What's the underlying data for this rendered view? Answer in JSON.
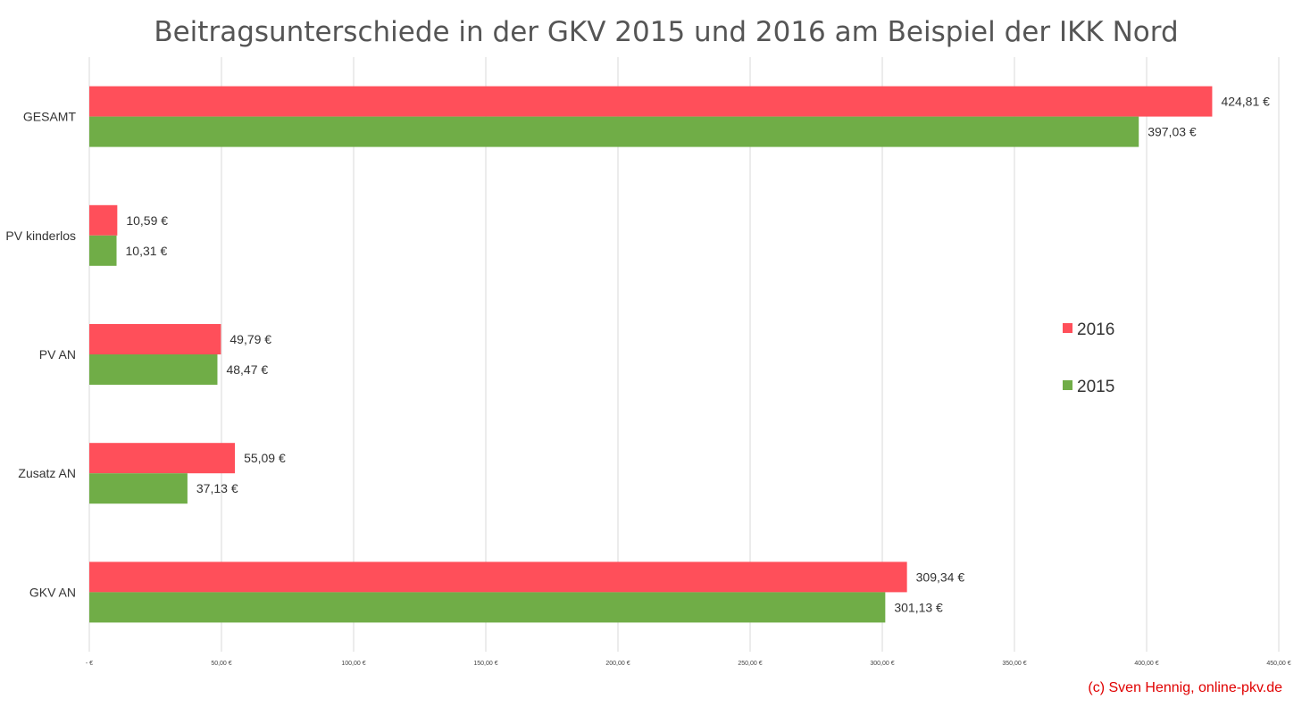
{
  "chart_data": {
    "type": "bar",
    "orientation": "horizontal",
    "title": "Beitragsunterschiede in der GKV 2015 und 2016 am Beispiel der IKK Nord",
    "categories": [
      "GESAMT",
      "PV kinderlos",
      "PV AN",
      "Zusatz AN",
      "GKV AN"
    ],
    "series": [
      {
        "name": "2016",
        "color": "#ff4f5a",
        "values": [
          424.81,
          10.59,
          49.79,
          55.09,
          309.34
        ],
        "labels": [
          "424,81 €",
          "10,59 €",
          "49,79 €",
          "55,09 €",
          "309,34 €"
        ]
      },
      {
        "name": "2015",
        "color": "#70ad47",
        "values": [
          397.03,
          10.31,
          48.47,
          37.13,
          301.13
        ],
        "labels": [
          "397,03 €",
          "10,31 €",
          "48,47 €",
          "37,13 €",
          "301,13 €"
        ]
      }
    ],
    "xlim": [
      0,
      450
    ],
    "xticks": [
      0,
      50,
      100,
      150,
      200,
      250,
      300,
      350,
      400,
      450
    ],
    "xtick_labels": [
      "-   €",
      "50,00 €",
      "100,00 €",
      "150,00 €",
      "200,00 €",
      "250,00 €",
      "300,00 €",
      "350,00 €",
      "400,00 €",
      "450,00 €"
    ],
    "grid": true,
    "legend_position": "right",
    "credit": "(c) Sven Hennig, online-pkv.de"
  }
}
